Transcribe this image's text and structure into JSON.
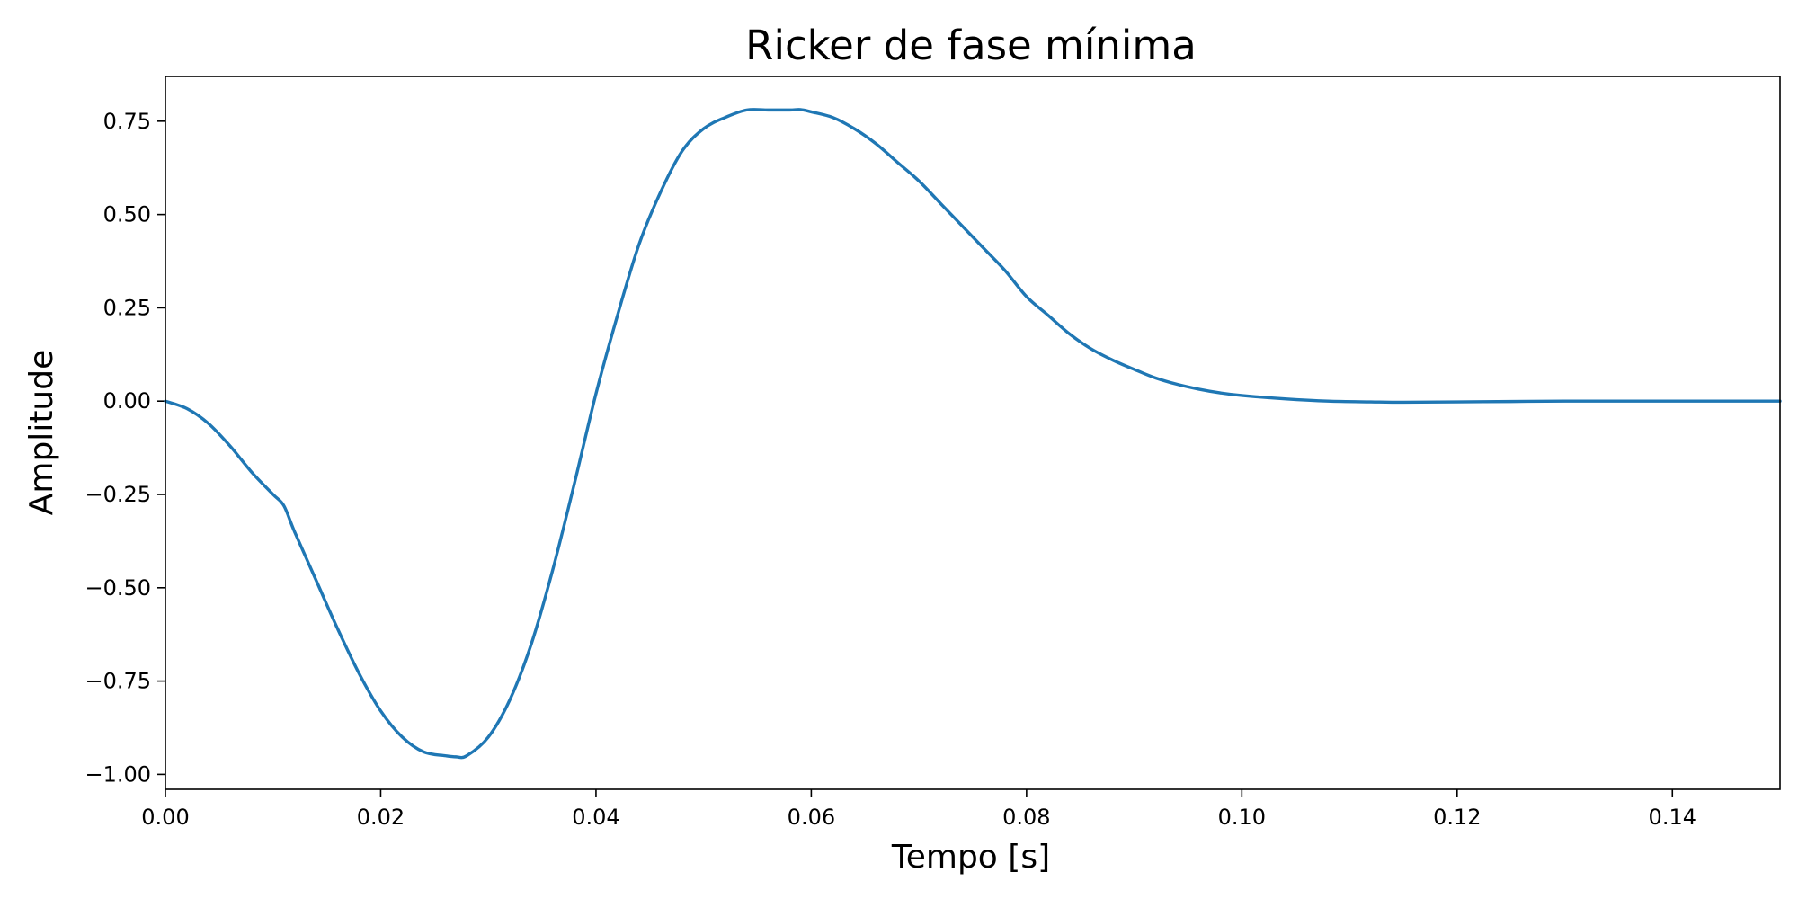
{
  "chart_data": {
    "type": "line",
    "title": "Ricker de fase mínima",
    "xlabel": "Tempo [s]",
    "ylabel": "Amplitude",
    "xlim": [
      0.0,
      0.15
    ],
    "ylim": [
      -1.04,
      0.87
    ],
    "x_ticks": [
      0.0,
      0.02,
      0.04,
      0.06,
      0.08,
      0.1,
      0.12,
      0.14
    ],
    "x_tick_labels": [
      "0.00",
      "0.02",
      "0.04",
      "0.06",
      "0.08",
      "0.10",
      "0.12",
      "0.14"
    ],
    "y_ticks": [
      0.75,
      0.5,
      0.25,
      0.0,
      -0.25,
      -0.5,
      -0.75,
      -1.0
    ],
    "y_tick_labels": [
      "0.75",
      "0.50",
      "0.25",
      "0.00",
      "−0.25",
      "−0.50",
      "−0.75",
      "−1.00"
    ],
    "grid": false,
    "color": "#1f77b4",
    "series": [
      {
        "x": [
          0.0,
          0.002,
          0.004,
          0.006,
          0.008,
          0.01,
          0.011,
          0.012,
          0.014,
          0.016,
          0.018,
          0.02,
          0.022,
          0.024,
          0.026,
          0.027,
          0.028,
          0.03,
          0.032,
          0.034,
          0.036,
          0.038,
          0.04,
          0.042,
          0.044,
          0.046,
          0.048,
          0.05,
          0.052,
          0.054,
          0.056,
          0.058,
          0.059,
          0.06,
          0.062,
          0.064,
          0.066,
          0.068,
          0.07,
          0.072,
          0.074,
          0.076,
          0.078,
          0.08,
          0.082,
          0.084,
          0.086,
          0.088,
          0.09,
          0.092,
          0.094,
          0.096,
          0.098,
          0.1,
          0.104,
          0.108,
          0.112,
          0.115,
          0.12,
          0.125,
          0.13,
          0.14,
          0.15
        ],
        "y": [
          0.0,
          -0.02,
          -0.06,
          -0.12,
          -0.19,
          -0.25,
          -0.28,
          -0.35,
          -0.48,
          -0.61,
          -0.73,
          -0.83,
          -0.9,
          -0.94,
          -0.95,
          -0.953,
          -0.95,
          -0.9,
          -0.8,
          -0.65,
          -0.45,
          -0.22,
          0.02,
          0.23,
          0.42,
          0.56,
          0.67,
          0.73,
          0.76,
          0.78,
          0.78,
          0.78,
          0.781,
          0.775,
          0.76,
          0.73,
          0.69,
          0.64,
          0.59,
          0.53,
          0.47,
          0.41,
          0.35,
          0.28,
          0.23,
          0.18,
          0.14,
          0.11,
          0.085,
          0.062,
          0.045,
          0.032,
          0.022,
          0.015,
          0.006,
          0.0,
          -0.002,
          -0.003,
          -0.002,
          -0.001,
          0.0,
          0.0,
          0.0
        ]
      }
    ]
  }
}
